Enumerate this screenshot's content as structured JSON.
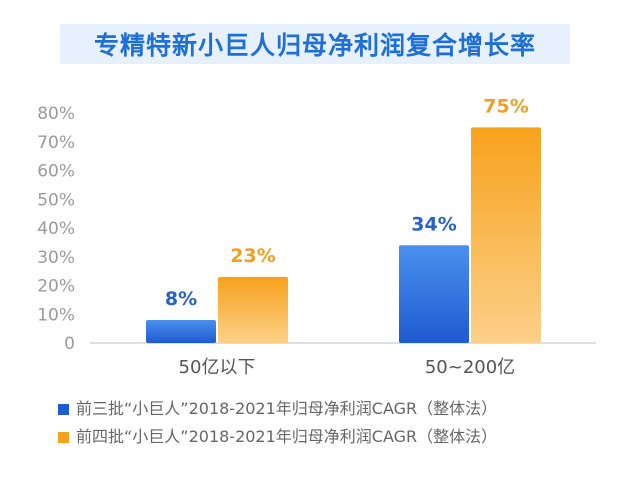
{
  "colors": {
    "title": "#1f6fd8",
    "title_band": "#e7f1fd",
    "series_blue_top": "#4a90ee",
    "series_blue_bottom": "#1f5ad0",
    "series_orange_top": "#f7a21c",
    "series_orange_bottom": "#fcd08a",
    "label_blue": "#2762c9",
    "label_orange": "#f2a023"
  },
  "chart_data": {
    "type": "bar",
    "title": "专精特新小巨人归母净利润复合增长率",
    "categories": [
      "50亿以下",
      "50~200亿"
    ],
    "series": [
      {
        "name": "前三批“小巨人”2018-2021年归母净利润CAGR（整体法）",
        "values": [
          8,
          34
        ],
        "labels": [
          "8%",
          "34%"
        ]
      },
      {
        "name": "前四批“小巨人”2018-2021年归母净利润CAGR（整体法）",
        "values": [
          23,
          75
        ],
        "labels": [
          "23%",
          "75%"
        ]
      }
    ],
    "y_ticks": [
      "0",
      "10%",
      "20%",
      "30%",
      "40%",
      "50%",
      "60%",
      "70%",
      "80%"
    ],
    "ylim": [
      0,
      80
    ],
    "unit": "%",
    "grid": false,
    "legend_position": "bottom-left"
  }
}
